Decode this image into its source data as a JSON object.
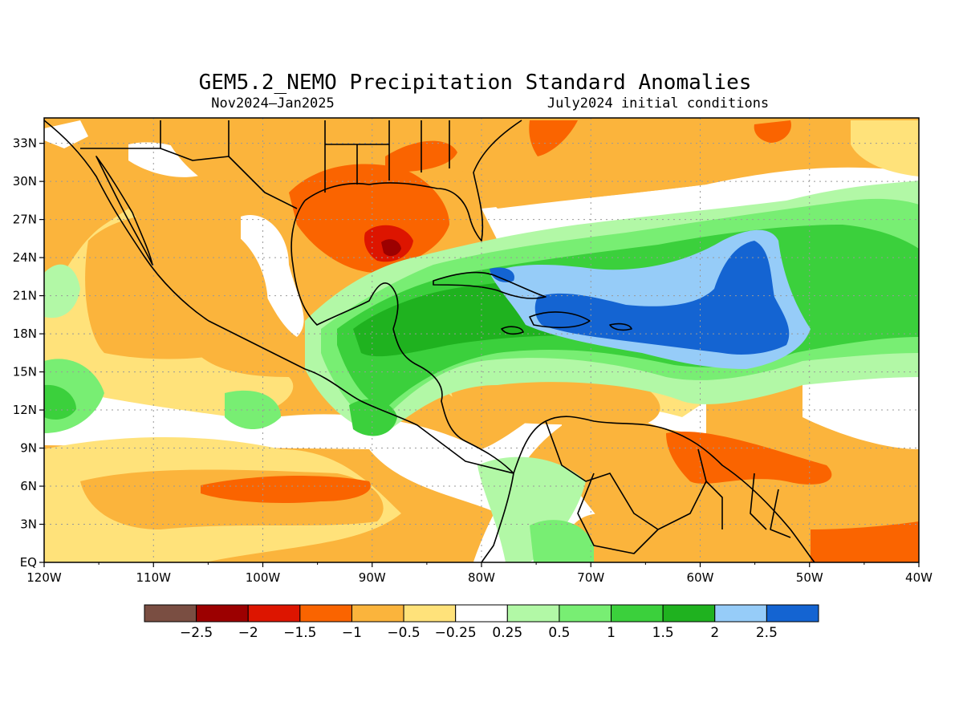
{
  "header": {
    "title": "GEM5.2_NEMO Precipitation Standard Anomalies",
    "period": "Nov2024–Jan2025",
    "init": "July2024 initial conditions"
  },
  "map": {
    "lon_range": [
      -120,
      -40
    ],
    "lat_range": [
      0,
      35
    ],
    "lon_labels": [
      "120W",
      "110W",
      "100W",
      "90W",
      "80W",
      "70W",
      "60W",
      "50W",
      "40W"
    ],
    "lat_labels": [
      "EQ",
      "3N",
      "6N",
      "9N",
      "12N",
      "15N",
      "18N",
      "21N",
      "24N",
      "27N",
      "30N",
      "33N"
    ],
    "grid": true
  },
  "legend": {
    "colors": [
      "#7a4e42",
      "#9c0000",
      "#dd1500",
      "#fa6400",
      "#fbb43c",
      "#ffe27a",
      "#ffffff",
      "#b2f8a6",
      "#78ee73",
      "#3bd03c",
      "#1fb21f",
      "#96ccf8",
      "#1464d2"
    ],
    "labels": [
      "−2.5",
      "−2",
      "−1.5",
      "−1",
      "−0.5",
      "−0.25",
      "0.25",
      "0.5",
      "1",
      "1.5",
      "2",
      "2.5"
    ]
  }
}
